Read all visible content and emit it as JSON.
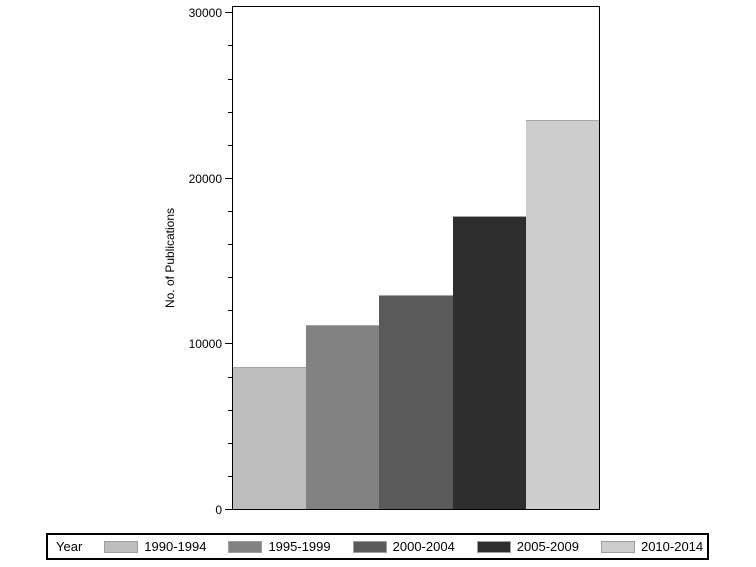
{
  "chart_data": {
    "type": "bar",
    "title": "",
    "xlabel": "",
    "ylabel": "No. of Publications",
    "categories": [
      "1990-1994",
      "1995-1999",
      "2000-2004",
      "2005-2009",
      "2010-2014"
    ],
    "values": [
      8600,
      11100,
      12900,
      17700,
      23500
    ],
    "ylim": [
      0,
      30000
    ],
    "ytick_major_interval": 10000,
    "ytick_minor_interval": 2000,
    "ytick_labels": [
      "0",
      "10000",
      "20000",
      "30000"
    ],
    "grid": false,
    "legend": {
      "title": "Year",
      "position": "bottom",
      "entries": [
        "1990-1994",
        "1995-1999",
        "2000-2004",
        "2005-2009",
        "2010-2014"
      ]
    },
    "colors": {
      "bars": [
        "#bdbdbd",
        "#828282",
        "#5a5a5a",
        "#2e2e2e",
        "#cdcdcd"
      ],
      "bar_outline": "#a6a6a6",
      "frame": "#000000",
      "text": "#000000",
      "background": "#ffffff"
    }
  }
}
